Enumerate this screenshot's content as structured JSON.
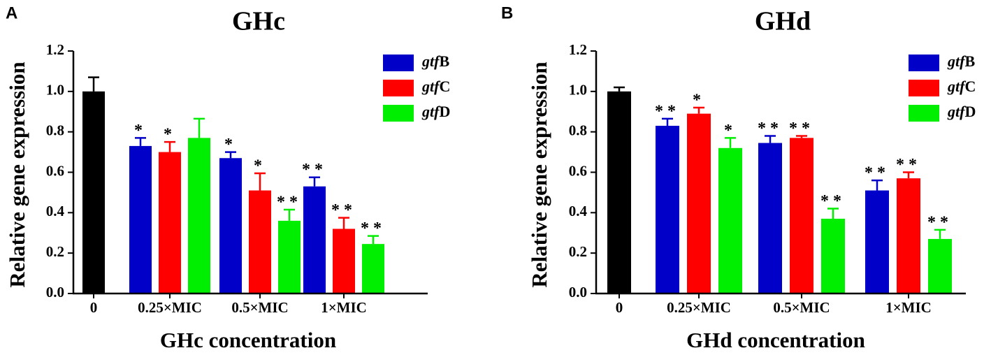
{
  "chart_data": [
    {
      "type": "bar",
      "panel_label": "A",
      "title": "GHc",
      "ylabel": "Relative gene expression",
      "xlabel": "GHc concentration",
      "categories": [
        "0",
        "0.25×MIC",
        "0.5×MIC",
        "1×MIC"
      ],
      "series": [
        {
          "color": "#000000",
          "values": [
            1.0,
            null,
            null,
            null
          ],
          "errors": [
            0.07,
            null,
            null,
            null
          ]
        },
        {
          "name": "gtfB",
          "color": "#0000c8",
          "values": [
            null,
            0.73,
            0.67,
            0.53
          ],
          "errors": [
            null,
            0.04,
            0.03,
            0.045
          ],
          "significance": [
            null,
            "*",
            "*",
            "**"
          ]
        },
        {
          "name": "gtfC",
          "color": "#ff0000",
          "values": [
            null,
            0.7,
            0.51,
            0.32
          ],
          "errors": [
            null,
            0.05,
            0.085,
            0.055
          ],
          "significance": [
            null,
            "*",
            "*",
            "**"
          ]
        },
        {
          "name": "gtfD",
          "color": "#00ee00",
          "values": [
            null,
            0.77,
            0.36,
            0.245
          ],
          "errors": [
            null,
            0.095,
            0.055,
            0.04
          ],
          "significance": [
            null,
            null,
            "**",
            "**"
          ]
        }
      ],
      "ylim": [
        0,
        1.2
      ],
      "yticks": [
        {
          "value": 0,
          "label": "0.0"
        },
        0.2,
        0.4,
        0.6,
        0.8,
        {
          "value": 1,
          "label": "1.0"
        },
        1.2
      ],
      "legend": "upper right"
    },
    {
      "type": "bar",
      "panel_label": "B",
      "title": "GHd",
      "ylabel": "Relative gene expression",
      "xlabel": "GHd concentration",
      "categories": [
        "0",
        "0.25×MIC",
        "0.5×MIC",
        "1×MIC"
      ],
      "series": [
        {
          "color": "#000000",
          "values": [
            1.0,
            null,
            null,
            null
          ],
          "errors": [
            0.02,
            null,
            null,
            null
          ]
        },
        {
          "name": "gtfB",
          "color": "#0000c8",
          "values": [
            null,
            0.83,
            0.745,
            0.51
          ],
          "errors": [
            null,
            0.035,
            0.035,
            0.05
          ],
          "significance": [
            null,
            "**",
            "**",
            "**"
          ]
        },
        {
          "name": "gtfC",
          "color": "#ff0000",
          "values": [
            null,
            0.89,
            0.77,
            0.57
          ],
          "errors": [
            null,
            0.03,
            0.01,
            0.03
          ],
          "significance": [
            null,
            "*",
            "**",
            "**"
          ]
        },
        {
          "name": "gtfD",
          "color": "#00ee00",
          "values": [
            null,
            0.72,
            0.37,
            0.27
          ],
          "errors": [
            null,
            0.05,
            0.05,
            0.045
          ],
          "significance": [
            null,
            "*",
            "**",
            "**"
          ]
        }
      ],
      "ylim": [
        0,
        1.2
      ],
      "yticks": [
        {
          "value": 0,
          "label": "0.0"
        },
        0.2,
        0.4,
        0.6,
        0.8,
        {
          "value": 1,
          "label": "1.0"
        },
        1.2
      ],
      "legend": "upper right"
    }
  ]
}
